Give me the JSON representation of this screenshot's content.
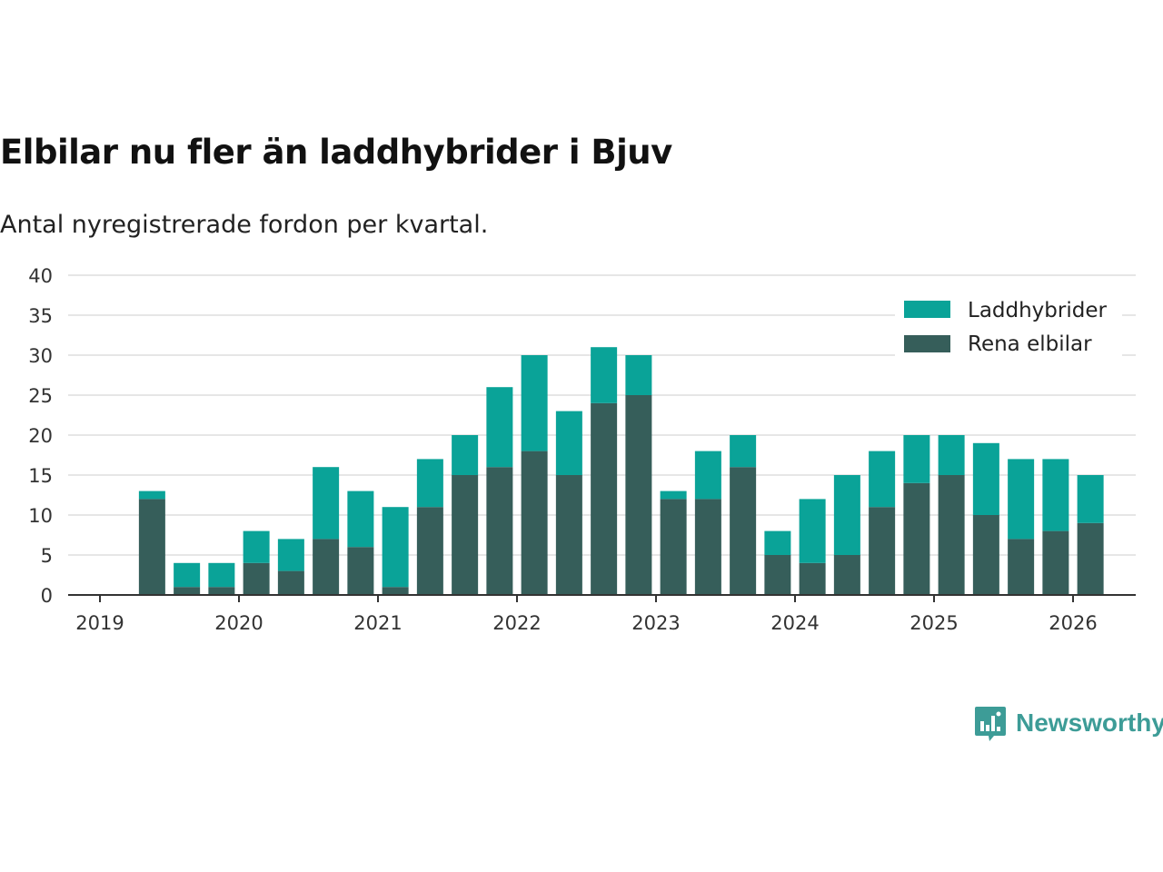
{
  "title": "Elbilar nu fler än laddhybrider i Bjuv",
  "subtitle": "Antal nyregistrerade fordon per kvartal.",
  "brand": {
    "name": "Newsworthy"
  },
  "colors": {
    "laddhybrider": "#0aa398",
    "rena_elbilar": "#365e5a",
    "grid": "#dddddd",
    "axis": "#333333"
  },
  "chart_data": {
    "type": "bar",
    "stacked": true,
    "title": "Elbilar nu fler än laddhybrider i Bjuv",
    "subtitle": "Antal nyregistrerade fordon per kvartal.",
    "xlabel": "",
    "ylabel": "",
    "ylim": [
      0,
      40
    ],
    "yticks": [
      0,
      5,
      10,
      15,
      20,
      25,
      30,
      35,
      40
    ],
    "xticks": [
      "2019",
      "2020",
      "2021",
      "2022",
      "2023",
      "2024",
      "2025",
      "2026"
    ],
    "legend_position": "top-right",
    "categories": [
      "2019 Q2",
      "2019 Q3",
      "2019 Q4",
      "2020 Q1",
      "2020 Q2",
      "2020 Q3",
      "2020 Q4",
      "2021 Q1",
      "2021 Q2",
      "2021 Q3",
      "2021 Q4",
      "2022 Q1",
      "2022 Q2",
      "2022 Q3",
      "2022 Q4",
      "2023 Q1",
      "2023 Q2",
      "2023 Q3",
      "2023 Q4",
      "2024 Q1",
      "2024 Q2",
      "2024 Q3",
      "2024 Q4",
      "2025 Q1",
      "2025 Q2",
      "2025 Q3",
      "2025 Q4",
      "2026 Q1"
    ],
    "series": [
      {
        "name": "Rena elbilar",
        "values": [
          12,
          1,
          1,
          4,
          3,
          7,
          6,
          1,
          11,
          15,
          16,
          18,
          15,
          24,
          25,
          12,
          12,
          16,
          5,
          4,
          5,
          11,
          14,
          15,
          10,
          7,
          8,
          9
        ]
      },
      {
        "name": "Laddhybrider",
        "values": [
          1,
          3,
          3,
          4,
          4,
          9,
          7,
          10,
          6,
          5,
          10,
          12,
          8,
          7,
          5,
          1,
          6,
          4,
          3,
          8,
          10,
          7,
          6,
          5,
          9,
          10,
          9,
          6
        ]
      }
    ]
  }
}
